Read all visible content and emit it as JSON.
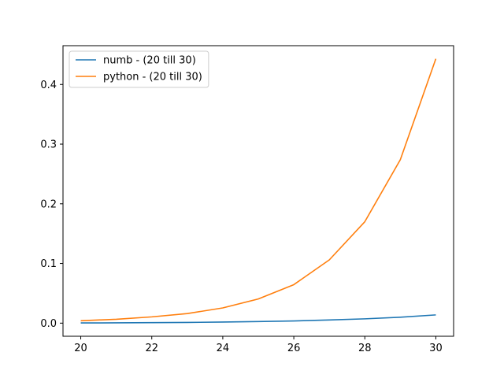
{
  "chart_data": {
    "type": "line",
    "title": "",
    "xlabel": "",
    "ylabel": "",
    "xlim": [
      19.5,
      30.5
    ],
    "ylim": [
      -0.022,
      0.465
    ],
    "xticks": [
      20,
      22,
      24,
      26,
      28,
      30
    ],
    "yticks": [
      0.0,
      0.1,
      0.2,
      0.3,
      0.4
    ],
    "xtick_labels": [
      "20",
      "22",
      "24",
      "26",
      "28",
      "30"
    ],
    "ytick_labels": [
      "0.0",
      "0.1",
      "0.2",
      "0.3",
      "0.4"
    ],
    "grid": false,
    "legend": {
      "position": "top-left"
    },
    "x": [
      20,
      21,
      22,
      23,
      24,
      25,
      26,
      27,
      28,
      29,
      30
    ],
    "series": [
      {
        "name": "numb - (20 till 30)",
        "color": "#1f77b4",
        "values": [
          0.0003,
          0.0005,
          0.0008,
          0.0012,
          0.0018,
          0.0026,
          0.0037,
          0.0053,
          0.0072,
          0.0099,
          0.0138
        ]
      },
      {
        "name": "python - (20 till 30)",
        "color": "#ff7f0e",
        "values": [
          0.004,
          0.0065,
          0.0105,
          0.016,
          0.0255,
          0.0405,
          0.0645,
          0.106,
          0.17,
          0.274,
          0.443
        ]
      }
    ]
  }
}
